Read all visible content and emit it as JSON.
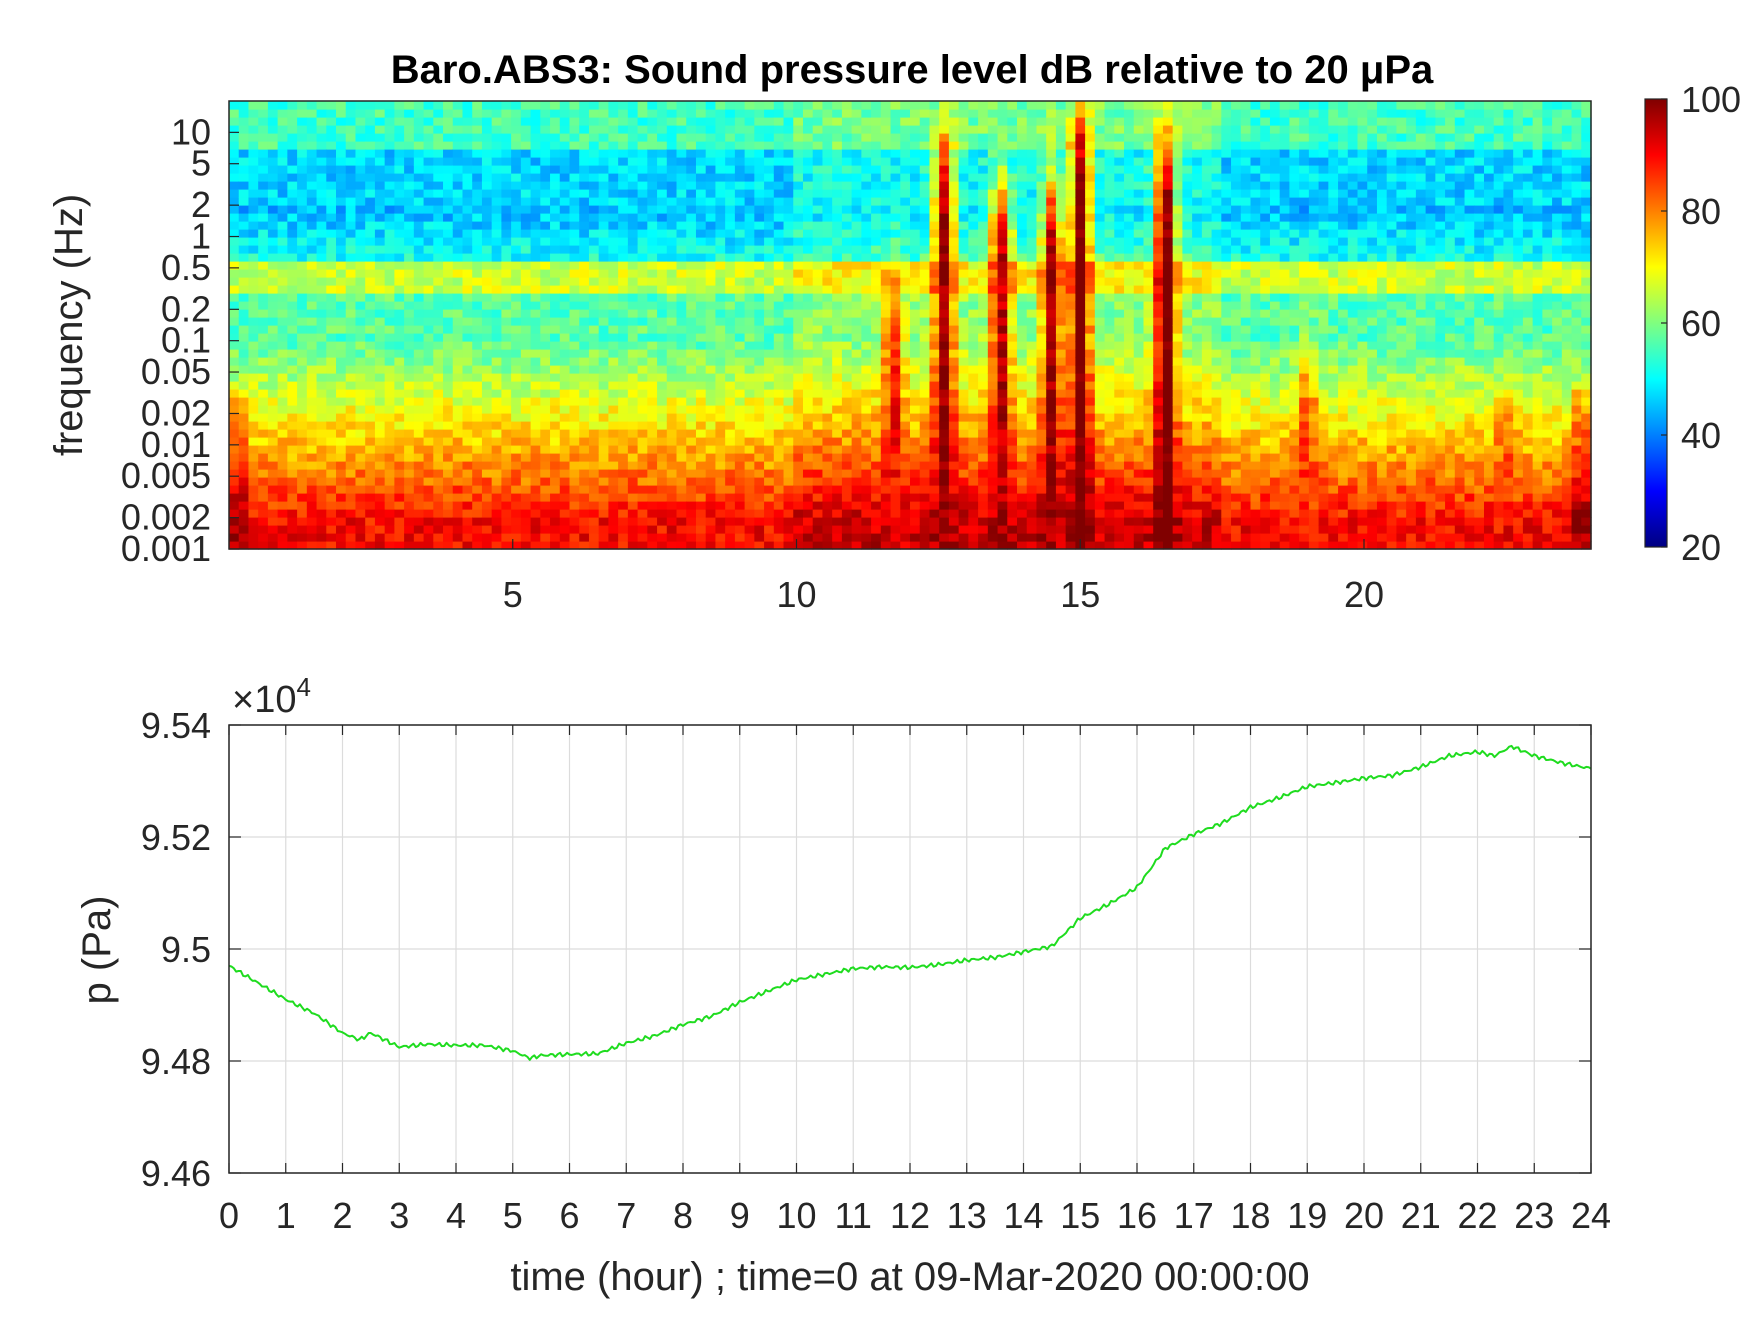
{
  "chart_data": [
    {
      "type": "heatmap",
      "title": "Baro.ABS3: Sound pressure level dB relative to 20 μPa",
      "xlabel": "",
      "ylabel": "frequency (Hz)",
      "x_range": [
        0,
        24
      ],
      "x_ticks": [
        5,
        10,
        15,
        20
      ],
      "y_scale": "log",
      "y_range": [
        0.001,
        20
      ],
      "y_ticks": [
        0.001,
        0.002,
        0.005,
        0.01,
        0.02,
        0.05,
        0.1,
        0.2,
        0.5,
        1,
        2,
        5,
        10
      ],
      "colorbar": {
        "label": "",
        "range": [
          20,
          100
        ],
        "ticks": [
          20,
          40,
          60,
          80,
          100
        ],
        "colormap": "jet"
      },
      "events": [
        {
          "time": 12.6,
          "peak_db": 95,
          "top_hz": 8
        },
        {
          "time": 13.6,
          "peak_db": 92,
          "top_hz": 3
        },
        {
          "time": 14.5,
          "peak_db": 94,
          "top_hz": 3
        },
        {
          "time": 15.0,
          "peak_db": 98,
          "top_hz": 14
        },
        {
          "time": 16.5,
          "peak_db": 100,
          "top_hz": 8
        },
        {
          "time": 11.7,
          "peak_db": 86,
          "top_hz": 0.3
        },
        {
          "time": 19.0,
          "peak_db": 86,
          "top_hz": 0.05
        },
        {
          "time": 4.0,
          "peak_db": 84,
          "top_hz": 0.005
        },
        {
          "time": 22.5,
          "peak_db": 84,
          "top_hz": 0.02
        }
      ],
      "grid": false
    },
    {
      "type": "line",
      "title": "",
      "xlabel": "time (hour) ; time=0 at 09-Mar-2020 00:00:00",
      "ylabel": "p (Pa)",
      "y_exponent": "×10",
      "y_exponent_power": "4",
      "xlim": [
        0,
        24
      ],
      "ylim": [
        9.46,
        9.54
      ],
      "x_ticks": [
        0,
        1,
        2,
        3,
        4,
        5,
        6,
        7,
        8,
        9,
        10,
        11,
        12,
        13,
        14,
        15,
        16,
        17,
        18,
        19,
        20,
        21,
        22,
        23,
        24
      ],
      "y_ticks": [
        "9.46",
        "9.48",
        "9.5",
        "9.52",
        "9.54"
      ],
      "grid": true,
      "series": [
        {
          "color": "#1fdc1f",
          "x": [
            0,
            0.5,
            1,
            1.5,
            2,
            2.3,
            2.5,
            3,
            3.5,
            4,
            4.5,
            5,
            5.3,
            5.5,
            6,
            6.5,
            7,
            7.5,
            8,
            8.5,
            9,
            9.5,
            10,
            10.5,
            11,
            11.5,
            12,
            12.5,
            13,
            13.5,
            14,
            14.5,
            15,
            15.5,
            16,
            16.5,
            17,
            17.5,
            18,
            18.5,
            19,
            19.5,
            20,
            20.5,
            21,
            21.5,
            22,
            22.3,
            22.6,
            23,
            23.5,
            24
          ],
          "y": [
            9.497,
            9.494,
            9.491,
            9.4885,
            9.485,
            9.4838,
            9.485,
            9.4825,
            9.483,
            9.4828,
            9.4828,
            9.4818,
            9.4805,
            9.481,
            9.4812,
            9.4813,
            9.4832,
            9.4845,
            9.4865,
            9.488,
            9.4905,
            9.4925,
            9.4945,
            9.4955,
            9.4965,
            9.4968,
            9.4967,
            9.4972,
            9.498,
            9.4985,
            9.4995,
            9.5005,
            9.5055,
            9.508,
            9.511,
            9.518,
            9.5205,
            9.5225,
            9.5253,
            9.527,
            9.529,
            9.5297,
            9.5305,
            9.531,
            9.5325,
            9.5345,
            9.5352,
            9.5345,
            9.5362,
            9.5345,
            9.5332,
            9.5322
          ]
        }
      ]
    }
  ]
}
